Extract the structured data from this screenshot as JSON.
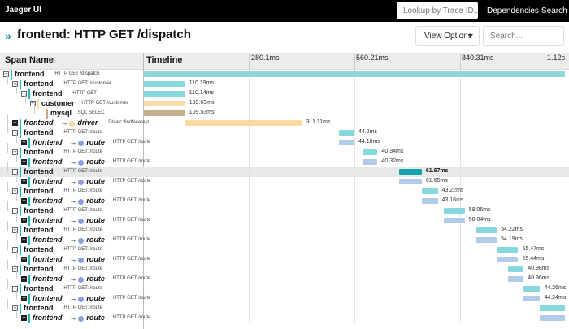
{
  "nav": {
    "logo": "Jaeger UI",
    "lookup_placeholder": "Lookup by Trace ID...",
    "dependencies": "Dependencies",
    "search": "Search"
  },
  "header": {
    "title": "frontend: HTTP GET /dispatch",
    "view_options": "View Options",
    "search_placeholder": "Search..."
  },
  "columns": {
    "span_name": "Span Name",
    "timeline": "Timeline",
    "ticks": [
      "280.1ms",
      "560.21ms",
      "840.31ms",
      "1.12s"
    ]
  },
  "colors": {
    "frontend": "#17b8be",
    "customer": "#f8dcac",
    "mysql": "#c4ad8d",
    "driver": "#fed8a1",
    "route": "#8a9ee3",
    "route_bar": "#b3cbeb",
    "frontend_light": "#87d8dc",
    "selected_bar": "#12a4ad"
  },
  "spans": [
    {
      "depth": 0,
      "toggle": "minus",
      "service": "frontend",
      "operation": "HTTP GET /dispatch",
      "color_key": "frontend",
      "start": 0.0,
      "end": 1.0,
      "duration": ""
    },
    {
      "depth": 1,
      "toggle": "minus",
      "service": "frontend",
      "operation": "HTTP GET: /customer",
      "color_key": "frontend_light",
      "start": 0.0,
      "end": 0.098,
      "duration": "110.19ms"
    },
    {
      "depth": 2,
      "toggle": "minus",
      "service": "frontend",
      "operation": "HTTP GET",
      "color_key": "frontend_light",
      "start": 0.0,
      "end": 0.098,
      "duration": "110.14ms"
    },
    {
      "depth": 3,
      "toggle": "minus",
      "service": "customer",
      "operation": "HTTP GET /customer",
      "color_key": "customer",
      "start": 0.0,
      "end": 0.098,
      "duration": "109.63ms"
    },
    {
      "depth": 4,
      "toggle": "none",
      "service": "mysql",
      "operation": "SQL SELECT",
      "color_key": "mysql",
      "start": 0.0,
      "end": 0.098,
      "duration": "109.53ms"
    },
    {
      "depth": 1,
      "toggle": "plus",
      "service": "frontend",
      "target": "driver",
      "dot_key": "driver",
      "operation": "Driver::findNearest",
      "color_key": "driver",
      "start": 0.098,
      "end": 0.376,
      "duration": "311.11ms"
    },
    {
      "depth": 1,
      "toggle": "minus",
      "service": "frontend",
      "operation": "HTTP GET: /route",
      "color_key": "frontend_light",
      "start": 0.463,
      "end": 0.5,
      "duration": "44.2ms"
    },
    {
      "depth": 2,
      "toggle": "plus",
      "service": "frontend",
      "target": "route",
      "dot_key": "route",
      "operation": "HTTP GET /route",
      "color_key": "route_bar",
      "start": 0.463,
      "end": 0.5,
      "duration": "44.18ms"
    },
    {
      "depth": 1,
      "toggle": "minus",
      "service": "frontend",
      "operation": "HTTP GET: /route",
      "color_key": "frontend_light",
      "start": 0.52,
      "end": 0.555,
      "duration": "40.34ms"
    },
    {
      "depth": 2,
      "toggle": "plus",
      "service": "frontend",
      "target": "route",
      "dot_key": "route",
      "operation": "HTTP GET /route",
      "color_key": "route_bar",
      "start": 0.52,
      "end": 0.555,
      "duration": "40.32ms"
    },
    {
      "depth": 1,
      "toggle": "minus",
      "service": "frontend",
      "operation": "HTTP GET: /route",
      "color_key": "selected_bar",
      "start": 0.607,
      "end": 0.66,
      "duration": "61.67ms",
      "selected": true
    },
    {
      "depth": 2,
      "toggle": "plus",
      "service": "frontend",
      "target": "route",
      "dot_key": "route",
      "operation": "HTTP GET /route",
      "color_key": "route_bar",
      "start": 0.607,
      "end": 0.66,
      "duration": "61.65ms"
    },
    {
      "depth": 1,
      "toggle": "minus",
      "service": "frontend",
      "operation": "HTTP GET: /route",
      "color_key": "frontend_light",
      "start": 0.66,
      "end": 0.698,
      "duration": "43.22ms"
    },
    {
      "depth": 2,
      "toggle": "plus",
      "service": "frontend",
      "target": "route",
      "dot_key": "route",
      "operation": "HTTP GET /route",
      "color_key": "route_bar",
      "start": 0.66,
      "end": 0.698,
      "duration": "43.18ms"
    },
    {
      "depth": 1,
      "toggle": "minus",
      "service": "frontend",
      "operation": "HTTP GET: /route",
      "color_key": "frontend_light",
      "start": 0.712,
      "end": 0.762,
      "duration": "58.06ms"
    },
    {
      "depth": 2,
      "toggle": "plus",
      "service": "frontend",
      "target": "route",
      "dot_key": "route",
      "operation": "HTTP GET /route",
      "color_key": "route_bar",
      "start": 0.712,
      "end": 0.762,
      "duration": "58.04ms"
    },
    {
      "depth": 1,
      "toggle": "minus",
      "service": "frontend",
      "operation": "HTTP GET: /route",
      "color_key": "frontend_light",
      "start": 0.79,
      "end": 0.838,
      "duration": "54.22ms"
    },
    {
      "depth": 2,
      "toggle": "plus",
      "service": "frontend",
      "target": "route",
      "dot_key": "route",
      "operation": "HTTP GET /route",
      "color_key": "route_bar",
      "start": 0.79,
      "end": 0.838,
      "duration": "54.19ms"
    },
    {
      "depth": 1,
      "toggle": "minus",
      "service": "frontend",
      "operation": "HTTP GET: /route",
      "color_key": "frontend_light",
      "start": 0.84,
      "end": 0.889,
      "duration": "55.47ms"
    },
    {
      "depth": 2,
      "toggle": "plus",
      "service": "frontend",
      "target": "route",
      "dot_key": "route",
      "operation": "HTTP GET /route",
      "color_key": "route_bar",
      "start": 0.84,
      "end": 0.889,
      "duration": "55.44ms"
    },
    {
      "depth": 1,
      "toggle": "minus",
      "service": "frontend",
      "operation": "HTTP GET: /route",
      "color_key": "frontend_light",
      "start": 0.865,
      "end": 0.902,
      "duration": "40.98ms"
    },
    {
      "depth": 2,
      "toggle": "plus",
      "service": "frontend",
      "target": "route",
      "dot_key": "route",
      "operation": "HTTP GET /route",
      "color_key": "route_bar",
      "start": 0.865,
      "end": 0.902,
      "duration": "40.96ms"
    },
    {
      "depth": 1,
      "toggle": "minus",
      "service": "frontend",
      "operation": "HTTP GET: /route",
      "color_key": "frontend_light",
      "start": 0.902,
      "end": 0.941,
      "duration": "44.26ms"
    },
    {
      "depth": 2,
      "toggle": "plus",
      "service": "frontend",
      "target": "route",
      "dot_key": "route",
      "operation": "HTTP GET /route",
      "color_key": "route_bar",
      "start": 0.902,
      "end": 0.941,
      "duration": "44.24ms"
    },
    {
      "depth": 1,
      "toggle": "minus",
      "service": "frontend",
      "operation": "HTTP GET: /route",
      "color_key": "frontend_light",
      "start": 0.94,
      "end": 1.0,
      "duration": ""
    },
    {
      "depth": 2,
      "toggle": "plus",
      "service": "frontend",
      "target": "route",
      "dot_key": "route",
      "operation": "HTTP GET /route",
      "color_key": "route_bar",
      "start": 0.94,
      "end": 1.0,
      "duration": ""
    }
  ]
}
